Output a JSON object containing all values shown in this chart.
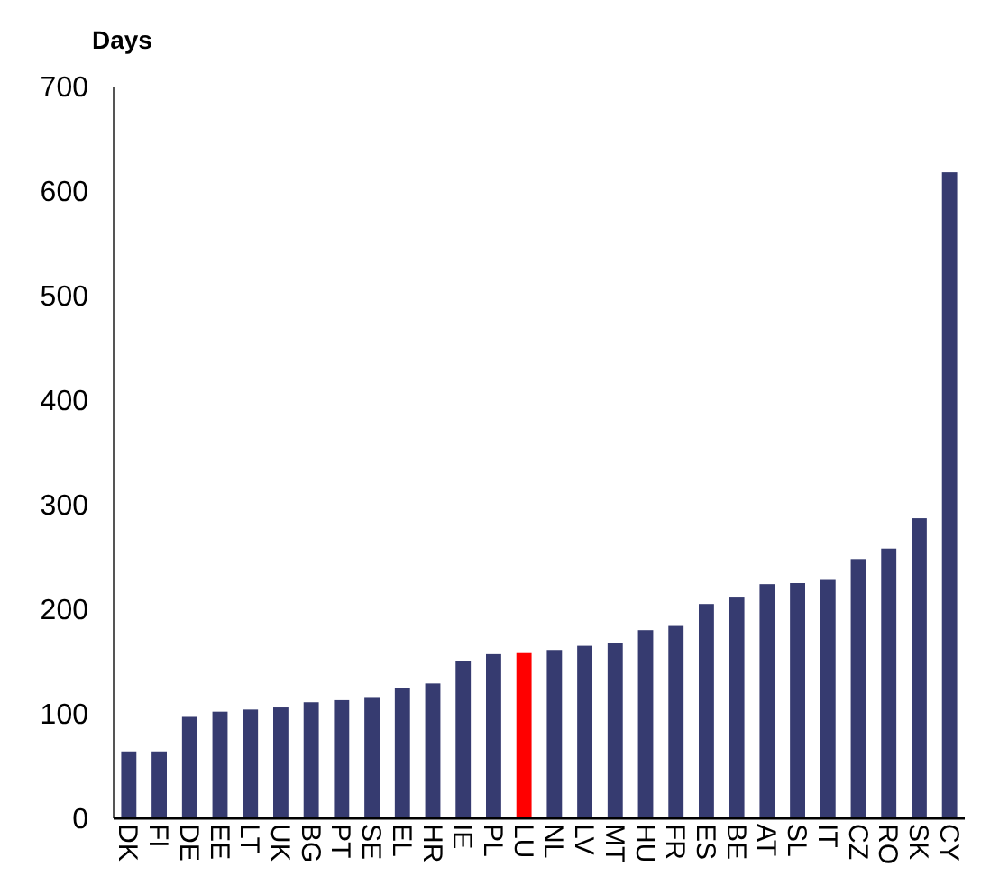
{
  "chart_data": {
    "type": "bar",
    "ylabel": "Days",
    "categories": [
      "DK",
      "FI",
      "DE",
      "EE",
      "LT",
      "UK",
      "BG",
      "PT",
      "SE",
      "EL",
      "HR",
      "IE",
      "PL",
      "LU",
      "NL",
      "LV",
      "MT",
      "HU",
      "FR",
      "ES",
      "BE",
      "AT",
      "SL",
      "IT",
      "CZ",
      "RO",
      "SK",
      "CY"
    ],
    "values": [
      64,
      64,
      97,
      102,
      104,
      106,
      111,
      113,
      116,
      125,
      129,
      150,
      157,
      158,
      161,
      165,
      168,
      180,
      184,
      205,
      212,
      224,
      225,
      228,
      248,
      258,
      287,
      618
    ],
    "colors": [
      "#363b70",
      "#363b70",
      "#363b70",
      "#363b70",
      "#363b70",
      "#363b70",
      "#363b70",
      "#363b70",
      "#363b70",
      "#363b70",
      "#363b70",
      "#363b70",
      "#363b70",
      "#ff0000",
      "#363b70",
      "#363b70",
      "#363b70",
      "#363b70",
      "#363b70",
      "#363b70",
      "#363b70",
      "#363b70",
      "#363b70",
      "#363b70",
      "#363b70",
      "#363b70",
      "#363b70",
      "#363b70"
    ],
    "ylim": [
      0,
      700
    ],
    "yticks": [
      0,
      100,
      200,
      300,
      400,
      500,
      600,
      700
    ],
    "grid": false
  }
}
